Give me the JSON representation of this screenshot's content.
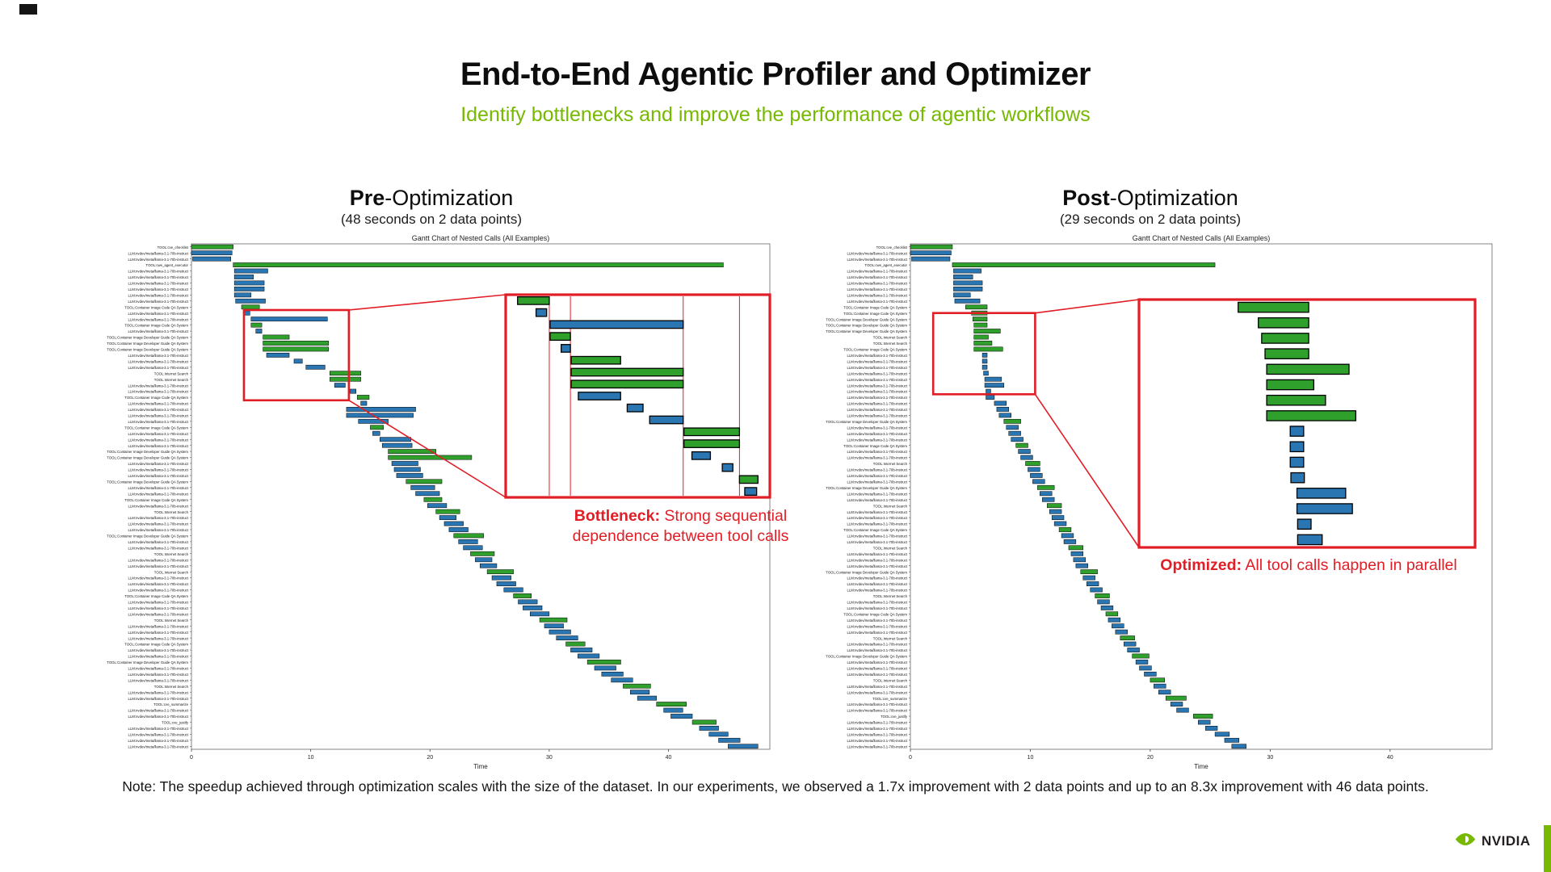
{
  "slide": {
    "title": "End-to-End Agentic Profiler and Optimizer",
    "subtitle": "Identify bottlenecks and improve the performance of agentic workflows",
    "note": "Note: The speedup achieved through optimization scales with the size of the dataset. In our experiments, we observed a 1.7x improvement with 2 data points and up to an 8.3x improvement with 46 data points.",
    "brand": "NVIDIA",
    "colors": {
      "nvidia_green": "#76b900",
      "bar_green": "#2fa02c",
      "bar_blue": "#2a76b2",
      "annotation_red": "#e11d26",
      "text_dark": "#111111"
    }
  },
  "label_map": {
    "CHK": "TOOL:cve_checklist",
    "LLM": "LLM:nvdev/meta/llama-3.1-70b-instruct",
    "EXE": "TOOL:cwe_agent_executor",
    "CODE": "TOOL:Container Image Code QA System",
    "DEV": "TOOL:Container Image Developer Guide QA System",
    "WEB": "TOOL:Internet Search",
    "SUM": "TOOL:cve_summarize",
    "JUS": "TOOL:cve_justify"
  },
  "chart_data": [
    {
      "type": "gantt",
      "heading": {
        "bold": "Pre",
        "rest": "-Optimization",
        "subtitle": "(48 seconds on 2 data points)"
      },
      "title": "Gantt Chart of Nested Calls (All Examples)",
      "xlabel": "Time",
      "xticks": [
        0,
        10,
        20,
        30,
        40
      ],
      "xlim": [
        0,
        48.5
      ],
      "total_seconds": 48,
      "annotation": {
        "bold": "Bottleneck:",
        "rest": " Strong sequential dependence between tool calls"
      },
      "highlight_region": {
        "t0": 4.4,
        "t1": 13.2,
        "r0": 11,
        "r1": 26
      },
      "rows": [
        [
          "CHK",
          0,
          3.5,
          "G"
        ],
        [
          "LLM",
          0,
          3.4,
          "B"
        ],
        [
          "LLM",
          0.1,
          3.3,
          "B"
        ],
        [
          "EXE",
          3.5,
          44.6,
          "G"
        ],
        [
          "LLM",
          3.6,
          6.4,
          "B"
        ],
        [
          "LLM",
          3.6,
          5.2,
          "B"
        ],
        [
          "LLM",
          3.6,
          6.1,
          "B"
        ],
        [
          "LLM",
          3.6,
          6.1,
          "B"
        ],
        [
          "LLM",
          3.6,
          5.0,
          "B"
        ],
        [
          "LLM",
          3.7,
          6.2,
          "B"
        ],
        [
          "CODE",
          4.2,
          5.7,
          "G"
        ],
        [
          "LLM",
          4.4,
          4.9,
          "B"
        ],
        [
          "LLM",
          5.0,
          11.4,
          "B"
        ],
        [
          "CODE",
          5.0,
          5.9,
          "G"
        ],
        [
          "LLM",
          5.4,
          5.9,
          "B"
        ],
        [
          "DEV",
          6.0,
          8.2,
          "G"
        ],
        [
          "DEV",
          6.0,
          11.5,
          "G"
        ],
        [
          "DEV",
          6.0,
          11.5,
          "G"
        ],
        [
          "LLM",
          6.3,
          8.2,
          "B"
        ],
        [
          "LLM",
          8.6,
          9.3,
          "B"
        ],
        [
          "LLM",
          9.6,
          11.2,
          "B"
        ],
        [
          "WEB",
          11.6,
          14.2,
          "G"
        ],
        [
          "WEB",
          11.6,
          14.2,
          "G"
        ],
        [
          "LLM",
          12.0,
          12.9,
          "B"
        ],
        [
          "LLM",
          13.3,
          13.8,
          "B"
        ],
        [
          "CODE",
          13.9,
          14.9,
          "G"
        ],
        [
          "LLM",
          14.2,
          14.7,
          "B"
        ],
        [
          "LLM",
          13.0,
          18.8,
          "B"
        ],
        [
          "LLM",
          13.0,
          18.6,
          "B"
        ],
        [
          "LLM",
          14.0,
          16.5,
          "B"
        ],
        [
          "CODE",
          15.0,
          16.1,
          "G"
        ],
        [
          "LLM",
          15.2,
          15.8,
          "B"
        ],
        [
          "LLM",
          15.8,
          18.4,
          "B"
        ],
        [
          "LLM",
          16.0,
          18.5,
          "B"
        ],
        [
          "DEV",
          16.5,
          20.5,
          "G"
        ],
        [
          "DEV",
          16.5,
          23.5,
          "G"
        ],
        [
          "LLM",
          16.8,
          19.0,
          "B"
        ],
        [
          "LLM",
          17.0,
          19.2,
          "B"
        ],
        [
          "LLM",
          17.2,
          19.4,
          "B"
        ],
        [
          "DEV",
          18.0,
          21.0,
          "G"
        ],
        [
          "LLM",
          18.4,
          20.4,
          "B"
        ],
        [
          "LLM",
          18.8,
          20.8,
          "B"
        ],
        [
          "CODE",
          19.5,
          21.0,
          "G"
        ],
        [
          "LLM",
          19.8,
          21.4,
          "B"
        ],
        [
          "WEB",
          20.5,
          22.5,
          "G"
        ],
        [
          "LLM",
          20.8,
          22.2,
          "B"
        ],
        [
          "LLM",
          21.2,
          22.8,
          "B"
        ],
        [
          "LLM",
          21.6,
          23.2,
          "B"
        ],
        [
          "DEV",
          22.0,
          24.5,
          "G"
        ],
        [
          "LLM",
          22.4,
          24.0,
          "B"
        ],
        [
          "LLM",
          22.8,
          24.4,
          "B"
        ],
        [
          "WEB",
          23.4,
          25.4,
          "G"
        ],
        [
          "LLM",
          23.8,
          25.2,
          "B"
        ],
        [
          "LLM",
          24.2,
          25.6,
          "B"
        ],
        [
          "WEB",
          24.8,
          27.0,
          "G"
        ],
        [
          "LLM",
          25.2,
          26.8,
          "B"
        ],
        [
          "LLM",
          25.6,
          27.2,
          "B"
        ],
        [
          "LLM",
          26.2,
          27.8,
          "B"
        ],
        [
          "CODE",
          27.0,
          28.5,
          "G"
        ],
        [
          "LLM",
          27.4,
          29.0,
          "B"
        ],
        [
          "LLM",
          27.8,
          29.4,
          "B"
        ],
        [
          "LLM",
          28.4,
          30.0,
          "B"
        ],
        [
          "WEB",
          29.2,
          31.5,
          "G"
        ],
        [
          "LLM",
          29.6,
          31.2,
          "B"
        ],
        [
          "LLM",
          30.0,
          31.8,
          "B"
        ],
        [
          "LLM",
          30.6,
          32.4,
          "B"
        ],
        [
          "CODE",
          31.4,
          33.0,
          "G"
        ],
        [
          "LLM",
          31.8,
          33.6,
          "B"
        ],
        [
          "LLM",
          32.4,
          34.2,
          "B"
        ],
        [
          "DEV",
          33.2,
          36.0,
          "G"
        ],
        [
          "LLM",
          33.8,
          35.6,
          "B"
        ],
        [
          "LLM",
          34.4,
          36.2,
          "B"
        ],
        [
          "LLM",
          35.2,
          37.0,
          "B"
        ],
        [
          "WEB",
          36.2,
          38.5,
          "G"
        ],
        [
          "LLM",
          36.8,
          38.4,
          "B"
        ],
        [
          "LLM",
          37.4,
          39.0,
          "B"
        ],
        [
          "SUM",
          39.0,
          41.5,
          "G"
        ],
        [
          "LLM",
          39.6,
          41.2,
          "B"
        ],
        [
          "LLM",
          40.2,
          42.0,
          "B"
        ],
        [
          "JUS",
          42.0,
          44.0,
          "G"
        ],
        [
          "LLM",
          42.6,
          44.2,
          "B"
        ],
        [
          "LLM",
          43.4,
          45.0,
          "B"
        ],
        [
          "LLM",
          44.2,
          46.0,
          "B"
        ],
        [
          "LLM",
          45.0,
          47.5,
          "B"
        ]
      ],
      "inset": {
        "guides": [
          0.165,
          0.245,
          0.672,
          0.885
        ],
        "rows": [
          [
            0.045,
            0.165,
            "G"
          ],
          [
            0.115,
            0.155,
            "B"
          ],
          [
            0.168,
            0.672,
            "B"
          ],
          [
            0.168,
            0.245,
            "G"
          ],
          [
            0.21,
            0.245,
            "B"
          ],
          [
            0.248,
            0.435,
            "G"
          ],
          [
            0.248,
            0.672,
            "G"
          ],
          [
            0.248,
            0.672,
            "G"
          ],
          [
            0.275,
            0.435,
            "B"
          ],
          [
            0.46,
            0.52,
            "B"
          ],
          [
            0.545,
            0.672,
            "B"
          ],
          [
            0.675,
            0.885,
            "G"
          ],
          [
            0.675,
            0.885,
            "G"
          ],
          [
            0.705,
            0.775,
            "B"
          ],
          [
            0.82,
            0.86,
            "B"
          ],
          [
            0.885,
            0.955,
            "G"
          ],
          [
            0.905,
            0.95,
            "B"
          ]
        ]
      }
    },
    {
      "type": "gantt",
      "heading": {
        "bold": "Post",
        "rest": "-Optimization",
        "subtitle": "(29 seconds on 2 data points)"
      },
      "title": "Gantt Chart of Nested Calls (All Examples)",
      "xlabel": "Time",
      "xticks": [
        0,
        10,
        20,
        30,
        40
      ],
      "xlim": [
        0,
        48.5
      ],
      "total_seconds": 29,
      "annotation": {
        "bold": "Optimized:",
        "rest": " All tool calls happen in parallel"
      },
      "highlight_region": {
        "t0": 1.9,
        "t1": 10.4,
        "r0": 11.5,
        "r1": 25
      },
      "rows": [
        [
          "CHK",
          0,
          3.5,
          "G"
        ],
        [
          "LLM",
          0,
          3.4,
          "B"
        ],
        [
          "LLM",
          0.1,
          3.3,
          "B"
        ],
        [
          "EXE",
          3.5,
          25.4,
          "G"
        ],
        [
          "LLM",
          3.6,
          5.9,
          "B"
        ],
        [
          "LLM",
          3.6,
          5.2,
          "B"
        ],
        [
          "LLM",
          3.6,
          6.0,
          "B"
        ],
        [
          "LLM",
          3.6,
          6.0,
          "B"
        ],
        [
          "LLM",
          3.6,
          5.0,
          "B"
        ],
        [
          "LLM",
          3.7,
          5.8,
          "B"
        ],
        [
          "CODE",
          4.6,
          6.4,
          "G"
        ],
        [
          "CODE",
          5.1,
          6.4,
          "G"
        ],
        [
          "DEV",
          5.2,
          6.4,
          "G"
        ],
        [
          "DEV",
          5.3,
          6.4,
          "G"
        ],
        [
          "DEV",
          5.3,
          7.5,
          "G"
        ],
        [
          "WEB",
          5.3,
          6.5,
          "G"
        ],
        [
          "WEB",
          5.3,
          6.8,
          "G"
        ],
        [
          "CODE",
          5.3,
          7.7,
          "G"
        ],
        [
          "LLM",
          6.0,
          6.4,
          "B"
        ],
        [
          "LLM",
          6.0,
          6.4,
          "B"
        ],
        [
          "LLM",
          6.0,
          6.4,
          "B"
        ],
        [
          "LLM",
          6.1,
          6.5,
          "B"
        ],
        [
          "LLM",
          6.2,
          7.6,
          "B"
        ],
        [
          "LLM",
          6.2,
          7.8,
          "B"
        ],
        [
          "LLM",
          6.3,
          6.7,
          "B"
        ],
        [
          "LLM",
          6.3,
          7.0,
          "B"
        ],
        [
          "LLM",
          7.0,
          8.0,
          "B"
        ],
        [
          "LLM",
          7.2,
          8.2,
          "B"
        ],
        [
          "LLM",
          7.4,
          8.4,
          "B"
        ],
        [
          "DEV",
          7.8,
          9.2,
          "G"
        ],
        [
          "LLM",
          8.0,
          9.0,
          "B"
        ],
        [
          "LLM",
          8.2,
          9.2,
          "B"
        ],
        [
          "LLM",
          8.4,
          9.4,
          "B"
        ],
        [
          "CODE",
          8.8,
          9.8,
          "G"
        ],
        [
          "LLM",
          9.0,
          10.0,
          "B"
        ],
        [
          "LLM",
          9.2,
          10.2,
          "B"
        ],
        [
          "WEB",
          9.6,
          10.8,
          "G"
        ],
        [
          "LLM",
          9.8,
          10.8,
          "B"
        ],
        [
          "LLM",
          10.0,
          11.0,
          "B"
        ],
        [
          "LLM",
          10.2,
          11.2,
          "B"
        ],
        [
          "DEV",
          10.6,
          12.0,
          "G"
        ],
        [
          "LLM",
          10.8,
          11.8,
          "B"
        ],
        [
          "LLM",
          11.0,
          12.0,
          "B"
        ],
        [
          "WEB",
          11.4,
          12.6,
          "G"
        ],
        [
          "LLM",
          11.6,
          12.6,
          "B"
        ],
        [
          "LLM",
          11.8,
          12.8,
          "B"
        ],
        [
          "LLM",
          12.0,
          13.0,
          "B"
        ],
        [
          "CODE",
          12.4,
          13.4,
          "G"
        ],
        [
          "LLM",
          12.6,
          13.6,
          "B"
        ],
        [
          "LLM",
          12.8,
          13.8,
          "B"
        ],
        [
          "WEB",
          13.2,
          14.4,
          "G"
        ],
        [
          "LLM",
          13.4,
          14.4,
          "B"
        ],
        [
          "LLM",
          13.6,
          14.6,
          "B"
        ],
        [
          "LLM",
          13.8,
          14.8,
          "B"
        ],
        [
          "DEV",
          14.2,
          15.6,
          "G"
        ],
        [
          "LLM",
          14.4,
          15.4,
          "B"
        ],
        [
          "LLM",
          14.7,
          15.7,
          "B"
        ],
        [
          "LLM",
          15.0,
          16.0,
          "B"
        ],
        [
          "WEB",
          15.4,
          16.6,
          "G"
        ],
        [
          "LLM",
          15.6,
          16.6,
          "B"
        ],
        [
          "LLM",
          15.9,
          16.9,
          "B"
        ],
        [
          "CODE",
          16.3,
          17.3,
          "G"
        ],
        [
          "LLM",
          16.5,
          17.5,
          "B"
        ],
        [
          "LLM",
          16.8,
          17.8,
          "B"
        ],
        [
          "LLM",
          17.1,
          18.1,
          "B"
        ],
        [
          "WEB",
          17.5,
          18.7,
          "G"
        ],
        [
          "LLM",
          17.8,
          18.8,
          "B"
        ],
        [
          "LLM",
          18.1,
          19.1,
          "B"
        ],
        [
          "DEV",
          18.5,
          19.9,
          "G"
        ],
        [
          "LLM",
          18.8,
          19.8,
          "B"
        ],
        [
          "LLM",
          19.1,
          20.1,
          "B"
        ],
        [
          "LLM",
          19.5,
          20.5,
          "B"
        ],
        [
          "WEB",
          20.0,
          21.2,
          "G"
        ],
        [
          "LLM",
          20.3,
          21.3,
          "B"
        ],
        [
          "LLM",
          20.7,
          21.7,
          "B"
        ],
        [
          "SUM",
          21.3,
          23.0,
          "G"
        ],
        [
          "LLM",
          21.7,
          22.7,
          "B"
        ],
        [
          "LLM",
          22.2,
          23.2,
          "B"
        ],
        [
          "JUS",
          23.6,
          25.2,
          "G"
        ],
        [
          "LLM",
          24.0,
          25.0,
          "B"
        ],
        [
          "LLM",
          24.6,
          25.6,
          "B"
        ],
        [
          "LLM",
          25.4,
          26.6,
          "B"
        ],
        [
          "LLM",
          26.2,
          27.4,
          "B"
        ],
        [
          "LLM",
          26.8,
          28.0,
          "B"
        ]
      ],
      "inset": {
        "guides": [],
        "rows": [
          [
            0.295,
            0.505,
            "G"
          ],
          [
            0.355,
            0.505,
            "G"
          ],
          [
            0.365,
            0.505,
            "G"
          ],
          [
            0.375,
            0.505,
            "G"
          ],
          [
            0.38,
            0.625,
            "G"
          ],
          [
            0.38,
            0.52,
            "G"
          ],
          [
            0.38,
            0.555,
            "G"
          ],
          [
            0.38,
            0.645,
            "G"
          ],
          [
            0.45,
            0.49,
            "B"
          ],
          [
            0.45,
            0.49,
            "B"
          ],
          [
            0.45,
            0.49,
            "B"
          ],
          [
            0.452,
            0.492,
            "B"
          ],
          [
            0.47,
            0.615,
            "B"
          ],
          [
            0.47,
            0.635,
            "B"
          ],
          [
            0.472,
            0.512,
            "B"
          ],
          [
            0.472,
            0.545,
            "B"
          ]
        ]
      }
    }
  ]
}
